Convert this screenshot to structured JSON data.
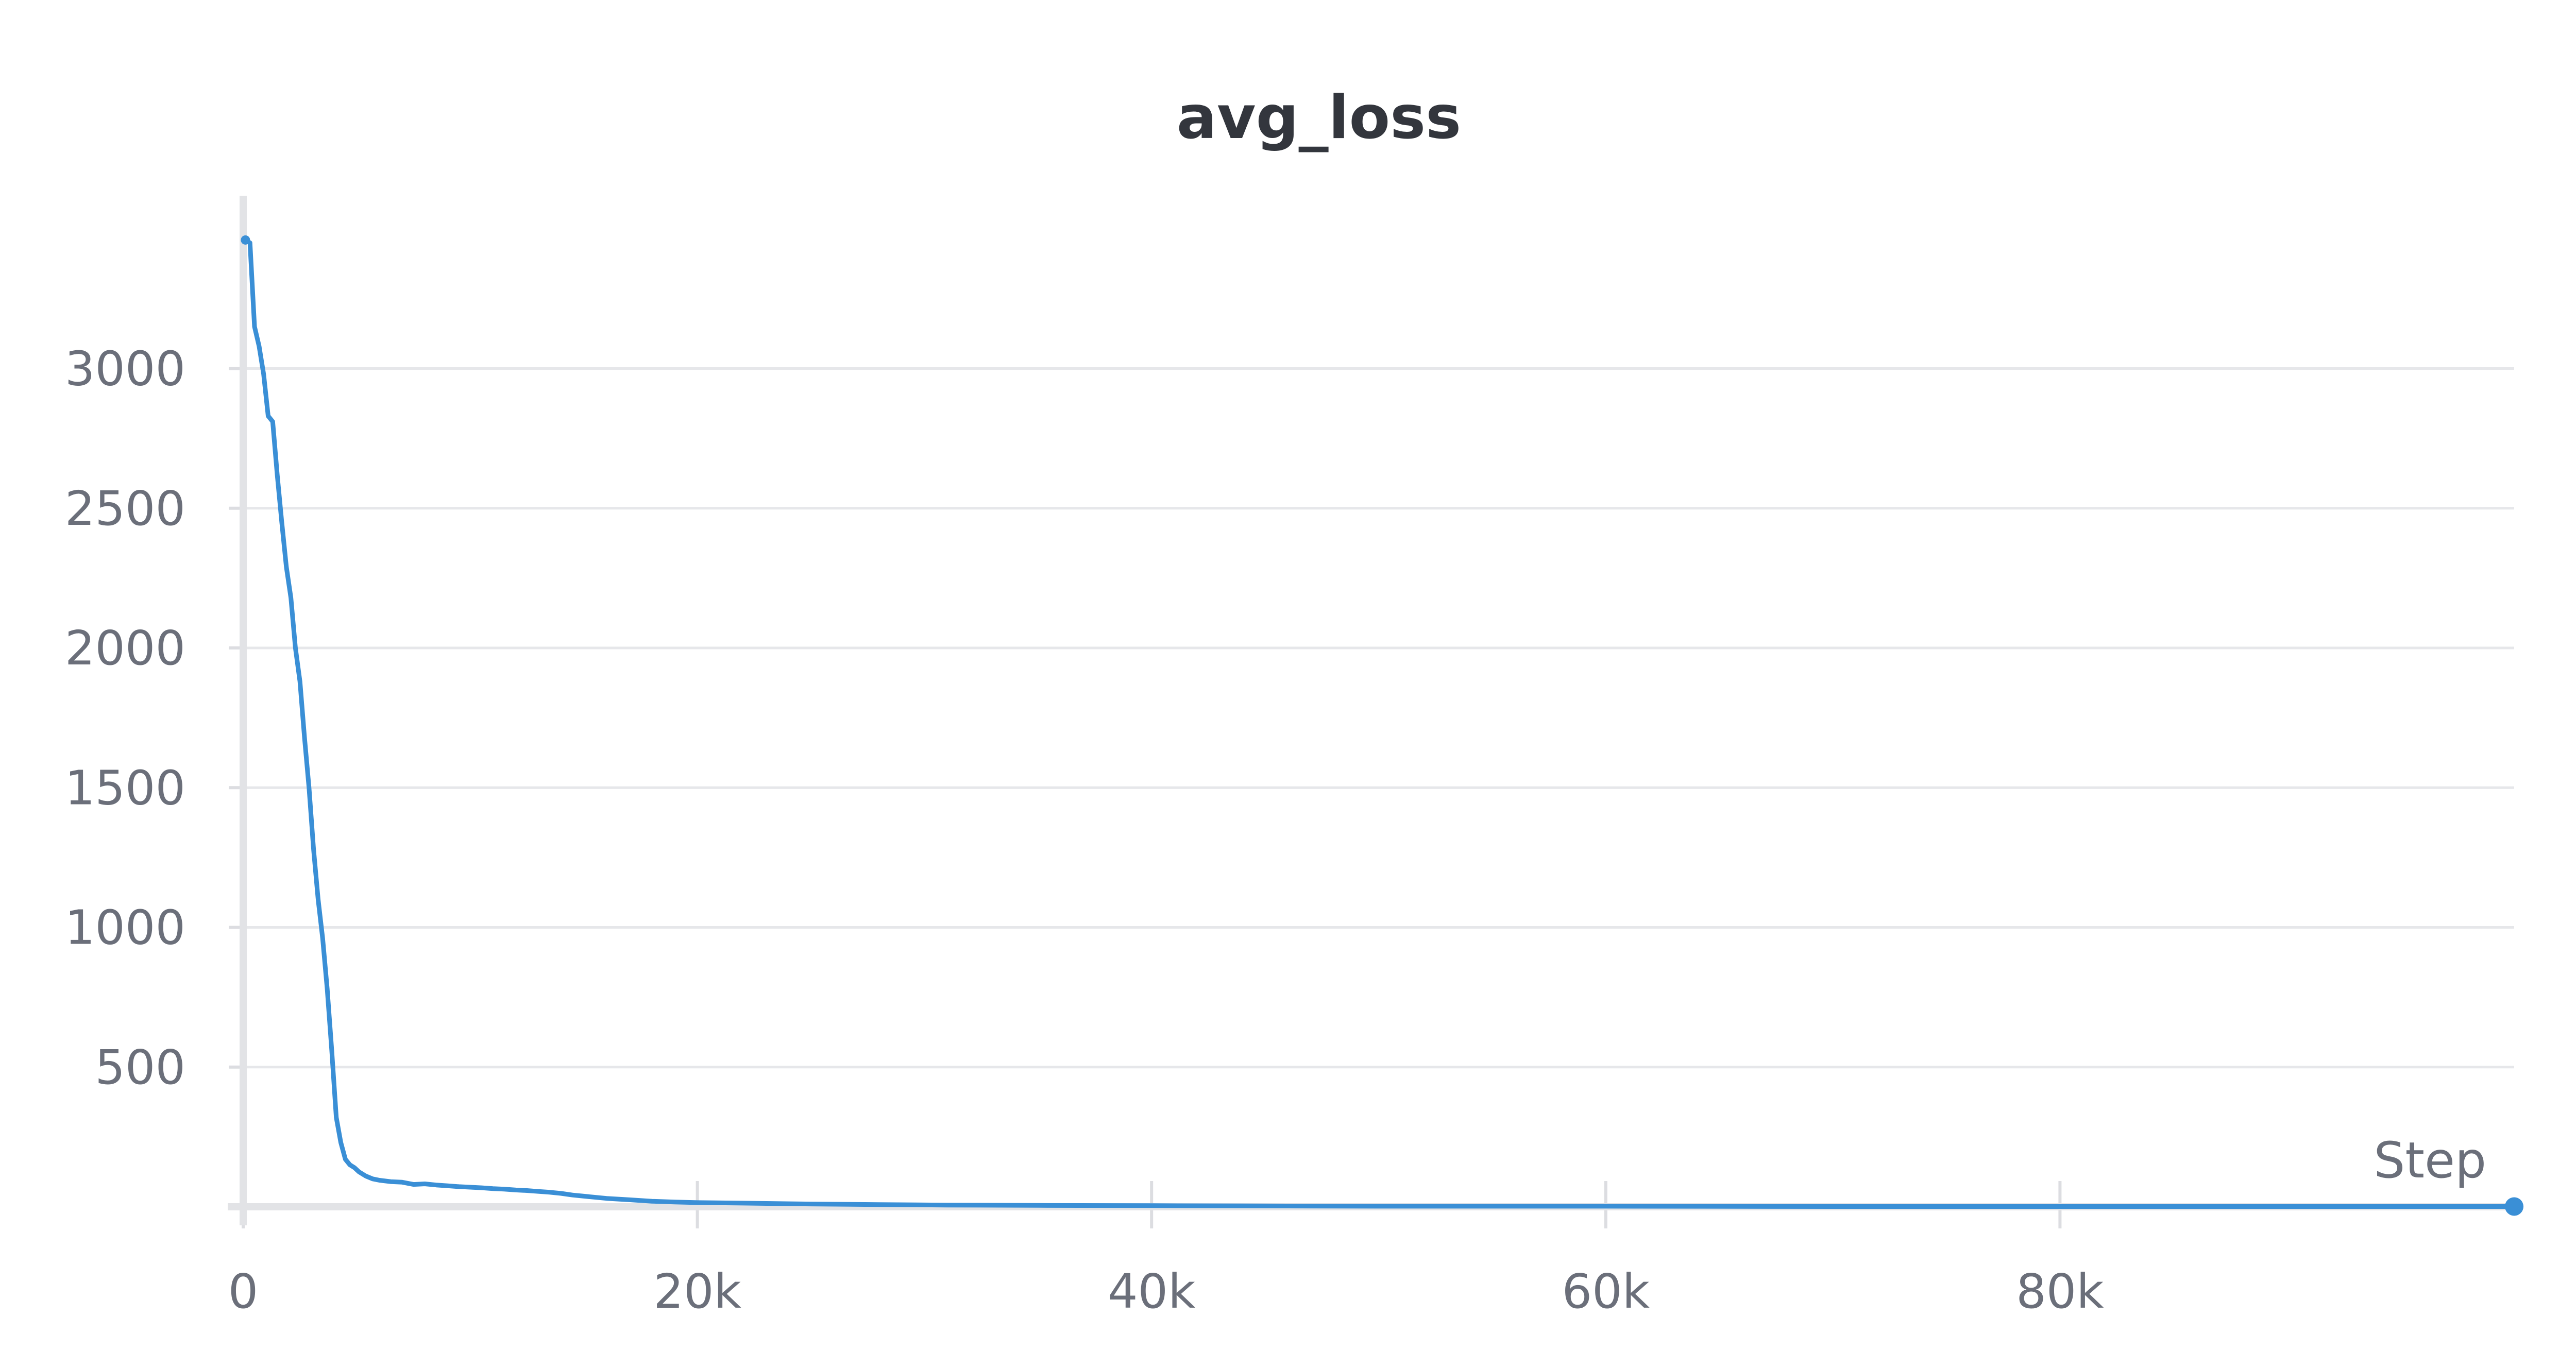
{
  "chart_data": {
    "type": "line",
    "title": "avg_loss",
    "xlabel": "Step",
    "ylabel": "",
    "xlim": [
      0,
      100000
    ],
    "ylim": [
      0,
      3600
    ],
    "x_ticks": [
      {
        "value": 0,
        "label": "0"
      },
      {
        "value": 20000,
        "label": "20k"
      },
      {
        "value": 40000,
        "label": "40k"
      },
      {
        "value": 60000,
        "label": "60k"
      },
      {
        "value": 80000,
        "label": "80k"
      }
    ],
    "y_ticks": [
      {
        "value": 500,
        "label": "500"
      },
      {
        "value": 1000,
        "label": "1000"
      },
      {
        "value": 1500,
        "label": "1500"
      },
      {
        "value": 2000,
        "label": "2000"
      },
      {
        "value": 2500,
        "label": "2500"
      },
      {
        "value": 3000,
        "label": "3000"
      }
    ],
    "grid": {
      "horizontal": true,
      "vertical": false
    },
    "legend": "none",
    "series": [
      {
        "color": "#3a8fd6",
        "end_marker": true,
        "x": [
          100,
          300,
          500,
          700,
          900,
          1100,
          1300,
          1500,
          1700,
          1900,
          2100,
          2300,
          2500,
          2700,
          2900,
          3100,
          3300,
          3500,
          3700,
          3900,
          4100,
          4300,
          4500,
          4700,
          4900,
          5100,
          5400,
          5700,
          6000,
          6500,
          7000,
          7500,
          8000,
          8500,
          9000,
          9500,
          10000,
          10500,
          11000,
          11500,
          12000,
          12500,
          13000,
          13500,
          14000,
          14500,
          15000,
          16000,
          17000,
          18000,
          19000,
          20000,
          22000,
          25000,
          28000,
          31000,
          35000,
          40000,
          45000,
          50000,
          60000,
          70000,
          80000,
          90000,
          100000
        ],
        "y": [
          3460,
          3450,
          3150,
          3080,
          2980,
          2830,
          2810,
          2620,
          2450,
          2290,
          2180,
          2000,
          1880,
          1680,
          1500,
          1280,
          1100,
          960,
          780,
          560,
          320,
          230,
          170,
          150,
          140,
          125,
          110,
          100,
          95,
          90,
          88,
          80,
          82,
          78,
          75,
          72,
          70,
          68,
          65,
          63,
          60,
          58,
          55,
          52,
          48,
          42,
          38,
          30,
          25,
          20,
          17,
          15,
          13,
          10,
          8,
          6,
          5,
          4,
          3,
          2,
          2,
          1,
          1,
          1,
          1
        ]
      }
    ]
  }
}
